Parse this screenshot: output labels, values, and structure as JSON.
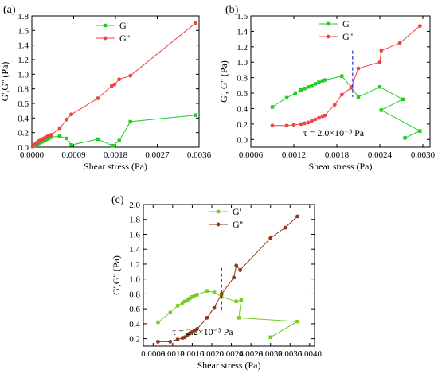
{
  "chart_data": [
    {
      "panel": "(a)",
      "type": "line",
      "xlabel": "Shear stress (Pa)",
      "ylabel": "G',G'' (Pa)",
      "xlim": [
        0,
        0.0036
      ],
      "ylim": [
        0,
        1.8
      ],
      "xticks": [
        "0.0000",
        "0.0009",
        "0.0018",
        "0.0027",
        "0.0036"
      ],
      "xtick_values": [
        0,
        0.0009,
        0.0018,
        0.0027,
        0.0036
      ],
      "yticks": [
        "0.0",
        "0.2",
        "0.4",
        "0.6",
        "0.8",
        "1.0",
        "1.2",
        "1.4",
        "1.6",
        "1.8"
      ],
      "ytick_values": [
        0,
        0.2,
        0.4,
        0.6,
        0.8,
        1.0,
        1.2,
        1.4,
        1.6,
        1.8
      ],
      "legend": "top-center",
      "series": [
        {
          "name": "G'",
          "color": "#22cc22",
          "marker": "square",
          "x": [
            2e-05,
            5e-05,
            8e-05,
            0.00011,
            0.00014,
            0.00017,
            0.0002,
            0.00023,
            0.00026,
            0.00029,
            0.00032,
            0.00035,
            0.00038,
            0.00042,
            0.0006,
            0.00075,
            0.00085,
            0.00142,
            0.00174,
            0.00188,
            0.00212,
            0.00352
          ],
          "y": [
            0.01,
            0.02,
            0.03,
            0.04,
            0.05,
            0.06,
            0.07,
            0.08,
            0.09,
            0.1,
            0.11,
            0.12,
            0.13,
            0.14,
            0.15,
            0.12,
            0.03,
            0.11,
            0.02,
            0.09,
            0.35,
            0.44
          ]
        },
        {
          "name": "G''",
          "color": "#ee4444",
          "marker": "circle",
          "x": [
            2e-05,
            5e-05,
            8e-05,
            0.00011,
            0.00014,
            0.00017,
            0.0002,
            0.00023,
            0.00026,
            0.00029,
            0.00032,
            0.00035,
            0.00038,
            0.00042,
            0.0006,
            0.00075,
            0.00085,
            0.00142,
            0.00172,
            0.00178,
            0.00188,
            0.00212,
            0.00352
          ],
          "y": [
            0.01,
            0.03,
            0.05,
            0.06,
            0.08,
            0.09,
            0.1,
            0.11,
            0.12,
            0.13,
            0.14,
            0.15,
            0.16,
            0.17,
            0.26,
            0.38,
            0.45,
            0.67,
            0.84,
            0.86,
            0.93,
            0.98,
            1.7
          ]
        }
      ]
    },
    {
      "panel": "(b)",
      "type": "line",
      "xlabel": "Shear stress (Pa)",
      "ylabel": "G', G'' (Pa)",
      "xlim": [
        0.0006,
        0.0031
      ],
      "ylim": [
        -0.1,
        1.6
      ],
      "xticks": [
        "0.0006",
        "0.0012",
        "0.0018",
        "0.0024",
        "0.0030"
      ],
      "xtick_values": [
        0.0006,
        0.0012,
        0.0018,
        0.0024,
        0.003
      ],
      "yticks": [
        "0.0",
        "0.2",
        "0.4",
        "0.6",
        "0.8",
        "1.0",
        "1.2",
        "1.4",
        "1.6"
      ],
      "ytick_values": [
        0,
        0.2,
        0.4,
        0.6,
        0.8,
        1.0,
        1.2,
        1.4,
        1.6
      ],
      "legend": "top-center",
      "annotation": {
        "text": "τ = 2.0×10⁻³ Pa",
        "vline_x": 0.00202,
        "vline_y": [
          0.55,
          1.15
        ]
      },
      "series": [
        {
          "name": "G'",
          "color": "#22cc22",
          "marker": "square",
          "x": [
            0.0009,
            0.0011,
            0.00122,
            0.0013,
            0.00135,
            0.0014,
            0.00145,
            0.0015,
            0.00155,
            0.0016,
            0.00163,
            0.00187,
            0.002,
            0.0021,
            0.0024,
            0.00272,
            0.00242,
            0.00296,
            0.00275
          ],
          "y": [
            0.42,
            0.54,
            0.6,
            0.64,
            0.66,
            0.68,
            0.7,
            0.72,
            0.74,
            0.76,
            0.77,
            0.82,
            0.68,
            0.55,
            0.68,
            0.52,
            0.38,
            0.11,
            0.02
          ]
        },
        {
          "name": "G''",
          "color": "#ee4444",
          "marker": "circle",
          "x": [
            0.0009,
            0.0011,
            0.0012,
            0.0013,
            0.00135,
            0.0014,
            0.00145,
            0.0015,
            0.00155,
            0.0016,
            0.00163,
            0.00177,
            0.00187,
            0.002,
            0.0021,
            0.0024,
            0.00242,
            0.00268,
            0.00296
          ],
          "y": [
            0.18,
            0.18,
            0.19,
            0.2,
            0.21,
            0.22,
            0.24,
            0.26,
            0.28,
            0.3,
            0.31,
            0.45,
            0.58,
            0.67,
            0.92,
            1.0,
            1.15,
            1.25,
            1.47
          ]
        }
      ]
    },
    {
      "panel": "(c)",
      "type": "line",
      "xlabel": "Shear stress (Pa)",
      "ylabel": "G',G'' (Pa)",
      "xlim": [
        0.0006,
        0.0041
      ],
      "ylim": [
        0.1,
        2.0
      ],
      "xticks": [
        "0.0008",
        "0.0012",
        "0.0016",
        "0.0020",
        "0.0024",
        "0.0028",
        "0.0032",
        "0.0036",
        "0.0040"
      ],
      "xtick_values": [
        0.0008,
        0.0012,
        0.0016,
        0.002,
        0.0024,
        0.0028,
        0.0032,
        0.0036,
        0.004
      ],
      "yticks": [
        "0.2",
        "0.4",
        "0.6",
        "0.8",
        "1.0",
        "1.2",
        "1.4",
        "1.6",
        "1.8",
        "2.0"
      ],
      "ytick_values": [
        0.2,
        0.4,
        0.6,
        0.8,
        1.0,
        1.2,
        1.4,
        1.6,
        1.8,
        2.0
      ],
      "legend": "top-center",
      "annotation": {
        "text": "τ = 2.2×10⁻³ Pa",
        "vline_x": 0.0022,
        "vline_y": [
          0.55,
          1.15
        ]
      },
      "series": [
        {
          "name": "G'",
          "color": "#77cc22",
          "marker": "square",
          "x": [
            0.0009,
            0.00115,
            0.0013,
            0.0014,
            0.00145,
            0.0015,
            0.00155,
            0.0016,
            0.00165,
            0.0017,
            0.0019,
            0.00205,
            0.0022,
            0.0025,
            0.0026,
            0.00255,
            0.00375,
            0.0032
          ],
          "y": [
            0.42,
            0.55,
            0.64,
            0.68,
            0.7,
            0.72,
            0.74,
            0.76,
            0.78,
            0.79,
            0.84,
            0.82,
            0.76,
            0.7,
            0.72,
            0.48,
            0.43,
            0.22
          ]
        },
        {
          "name": "G''",
          "color": "#8b3a1a",
          "marker": "circle",
          "x": [
            0.0009,
            0.00115,
            0.0013,
            0.0014,
            0.00145,
            0.0015,
            0.00155,
            0.0016,
            0.00165,
            0.0017,
            0.0019,
            0.00205,
            0.0022,
            0.00245,
            0.0025,
            0.00258,
            0.0032,
            0.0035,
            0.00375
          ],
          "y": [
            0.16,
            0.16,
            0.19,
            0.21,
            0.22,
            0.25,
            0.27,
            0.29,
            0.31,
            0.33,
            0.48,
            0.62,
            0.8,
            1.02,
            1.18,
            1.12,
            1.55,
            1.69,
            1.84
          ]
        }
      ]
    }
  ]
}
